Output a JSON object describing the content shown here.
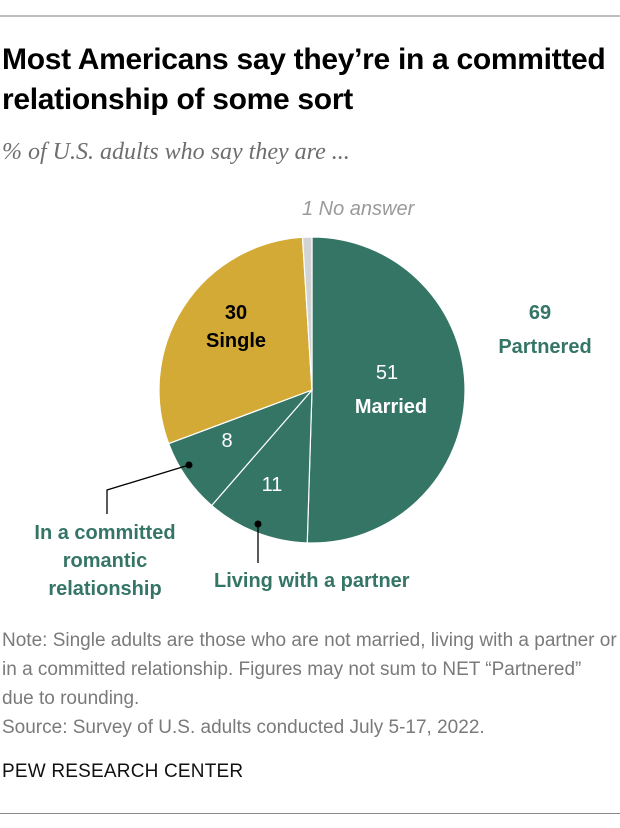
{
  "header": {
    "title": "Most Americans say they’re in a committed relationship of some sort",
    "subtitle": "% of U.S. adults who say they are ..."
  },
  "labels": {
    "no_answer": "1 No answer",
    "single_value": "30",
    "single_name": "Single",
    "married_value": "51",
    "married_name": "Married",
    "committed_value": "8",
    "living_value": "11",
    "partnered_value": "69",
    "partnered_name": "Partnered",
    "committed_name": "In a committed romantic relationship",
    "living_name": "Living with a partner"
  },
  "footer": {
    "note": "Note: Single adults are those who are not married, living with a partner or in a committed relationship. Figures may not sum to NET “Partnered” due to rounding.",
    "source": "Source: Survey of U.S. adults conducted July 5-17, 2022.",
    "brand": "PEW RESEARCH CENTER"
  },
  "colors": {
    "partnered": "#357566",
    "single": "#d4aa36",
    "no_answer": "#d1d3d4"
  },
  "chart_data": {
    "type": "pie",
    "title": "Most Americans say they’re in a committed relationship of some sort",
    "subtitle": "% of U.S. adults who say they are ...",
    "categories": [
      "Married",
      "Living with a partner",
      "In a committed romantic relationship",
      "Single",
      "No answer"
    ],
    "values": [
      51,
      11,
      8,
      30,
      1
    ],
    "colors": [
      "#357566",
      "#357566",
      "#357566",
      "#d4aa36",
      "#d1d3d4"
    ],
    "groups": [
      {
        "name": "Partnered",
        "value": 69,
        "members": [
          "Married",
          "Living with a partner",
          "In a committed romantic relationship"
        ]
      },
      {
        "name": "Single",
        "value": 30
      },
      {
        "name": "No answer",
        "value": 1
      }
    ],
    "unit": "%"
  }
}
